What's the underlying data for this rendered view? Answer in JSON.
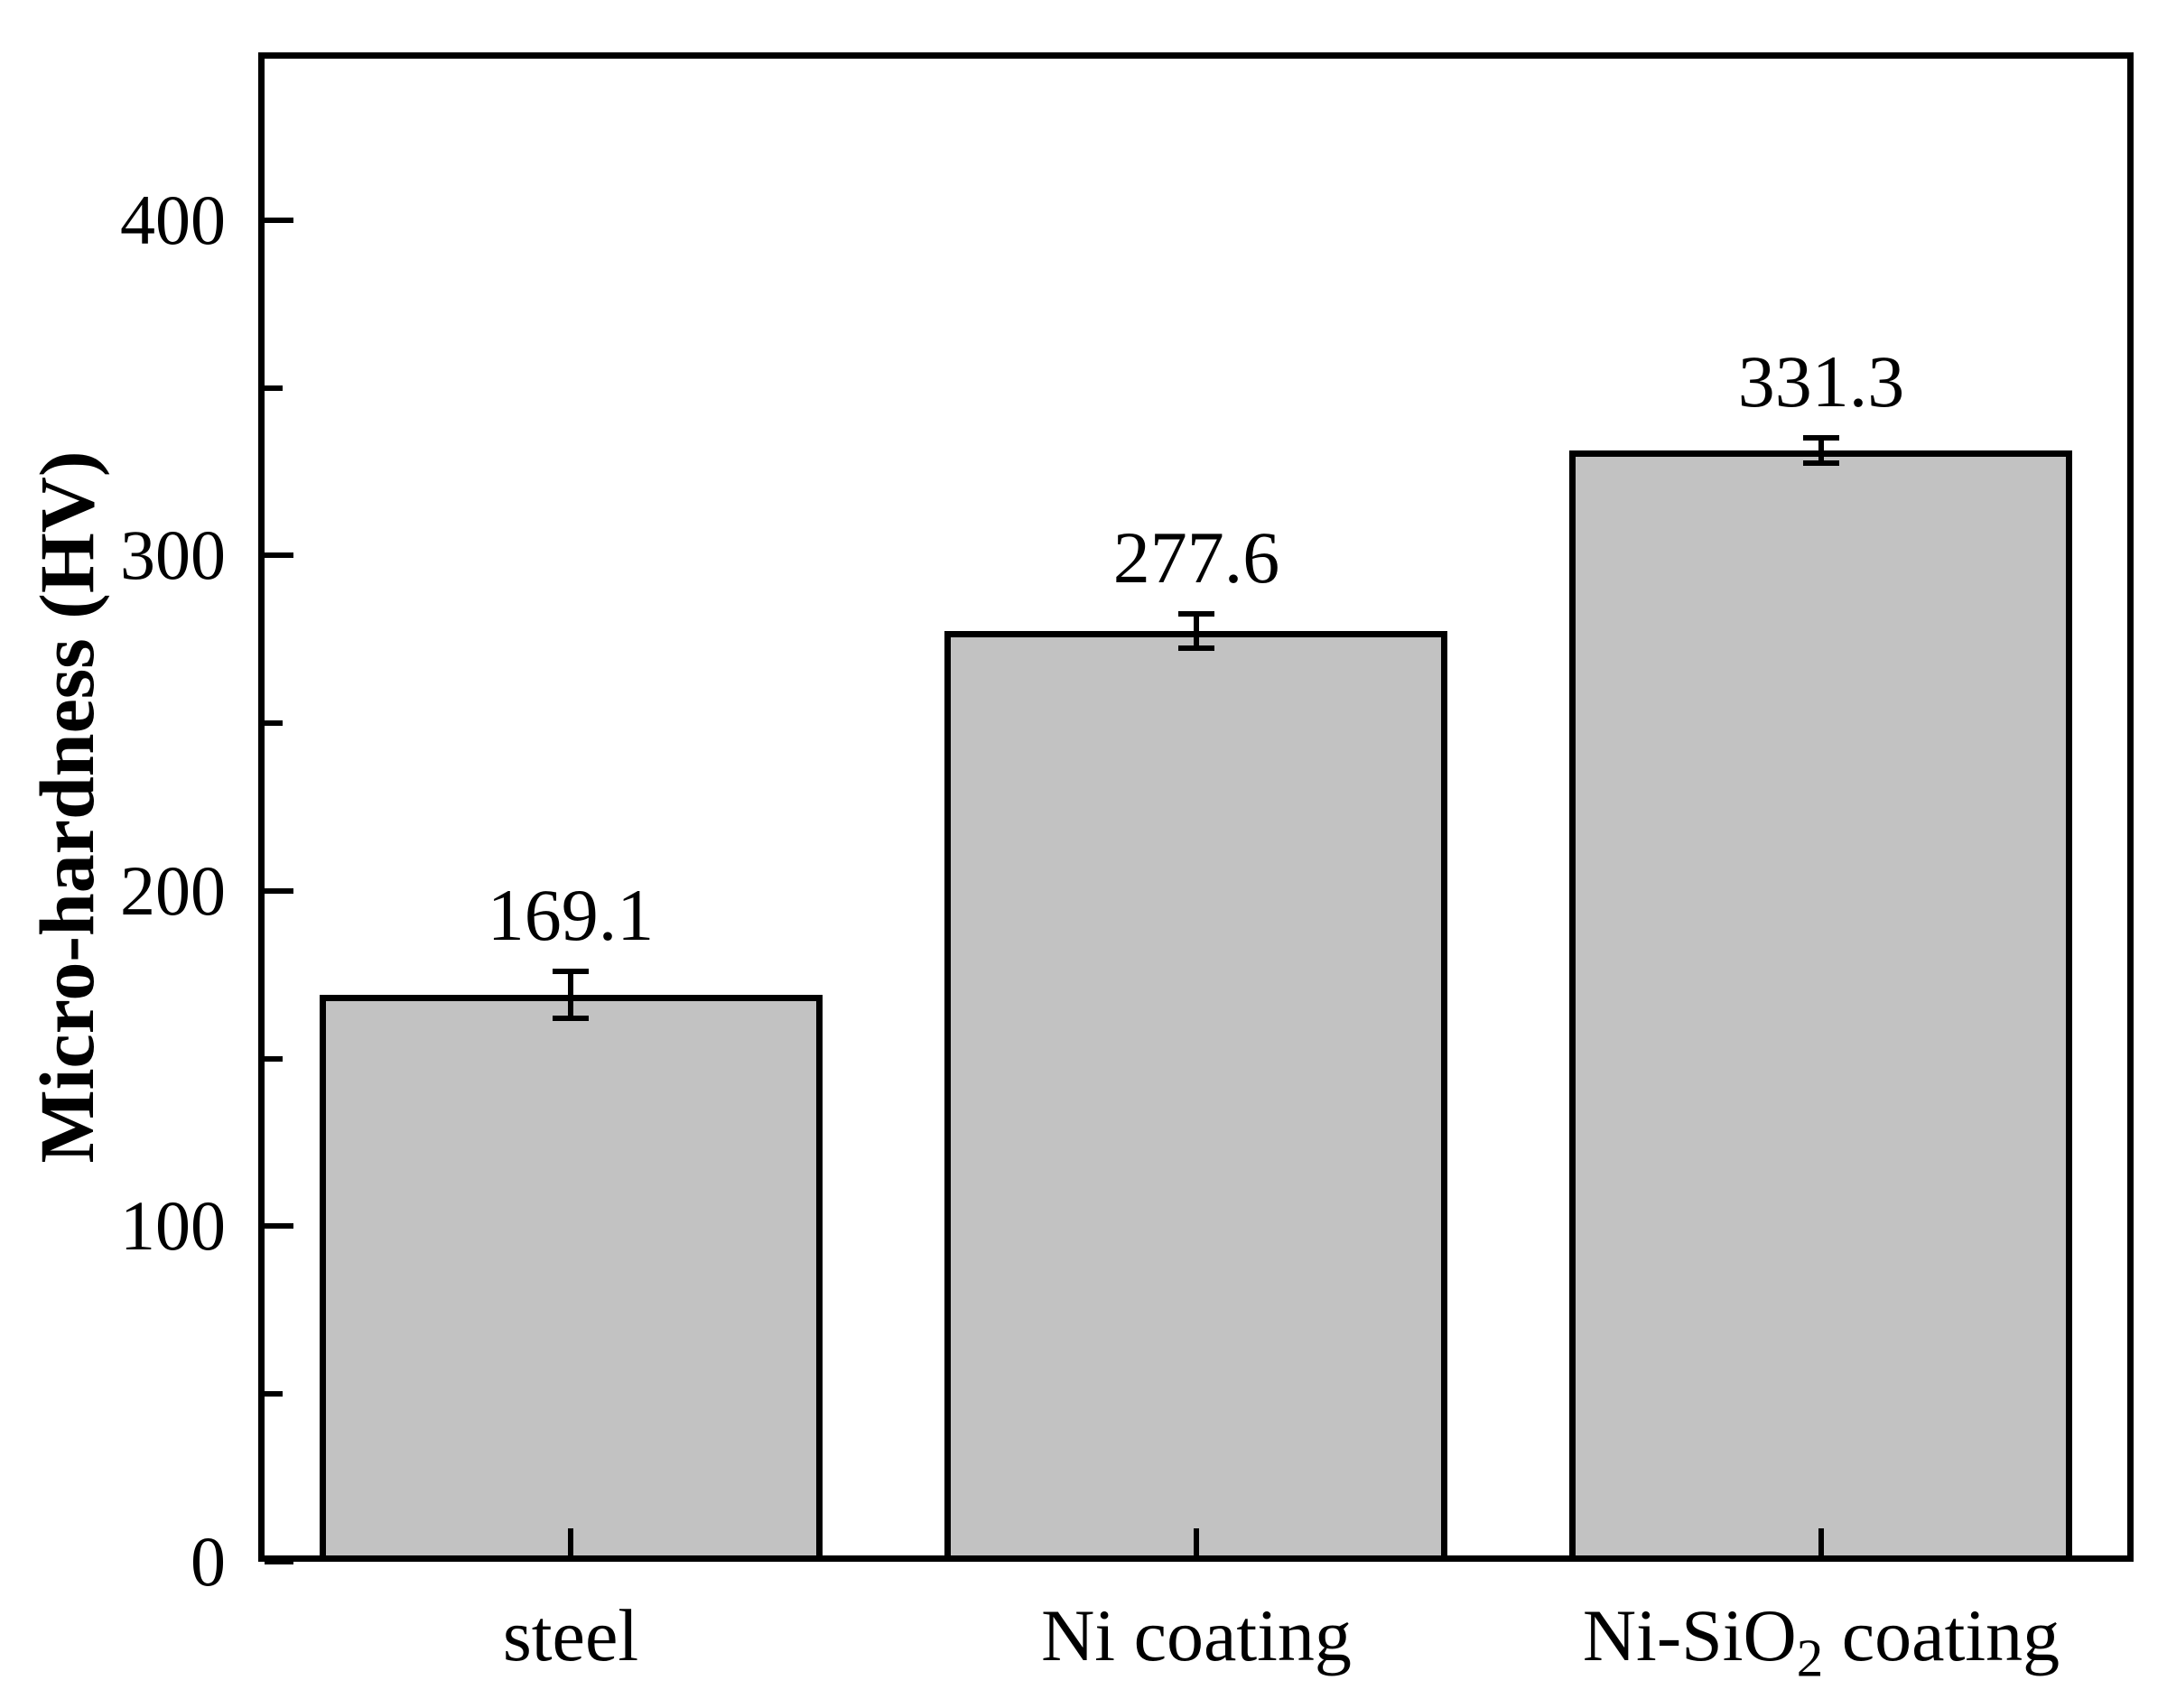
{
  "chart_data": {
    "type": "bar",
    "title": "",
    "ylabel": "Micro-hardness (HV)",
    "xlabel": "",
    "categories": [
      "steel",
      "Ni coating",
      "Ni-SiO2 coating"
    ],
    "categories_rich": [
      [
        {
          "text": "steel",
          "sub": false
        }
      ],
      [
        {
          "text": "Ni coating",
          "sub": false
        }
      ],
      [
        {
          "text": "Ni-SiO",
          "sub": false
        },
        {
          "text": "2",
          "sub": true
        },
        {
          "text": " coating",
          "sub": false
        }
      ]
    ],
    "values": [
      169.1,
      277.6,
      331.3
    ],
    "errors": [
      7.0,
      5.1,
      3.8
    ],
    "value_labels": [
      "169.1",
      "277.6",
      "331.3"
    ],
    "ylim": [
      0,
      450
    ],
    "yticks_major": [
      0,
      100,
      200,
      300,
      400
    ],
    "ytick_labels": [
      "0",
      "100",
      "200",
      "300",
      "400"
    ],
    "yticks_minor": [
      50,
      150,
      250,
      350
    ],
    "grid": false,
    "legend": null,
    "colors": {
      "bar_fill": "#c2c2c2",
      "bar_border": "#000000",
      "axis": "#000000",
      "text": "#000000",
      "background": "#ffffff"
    }
  }
}
